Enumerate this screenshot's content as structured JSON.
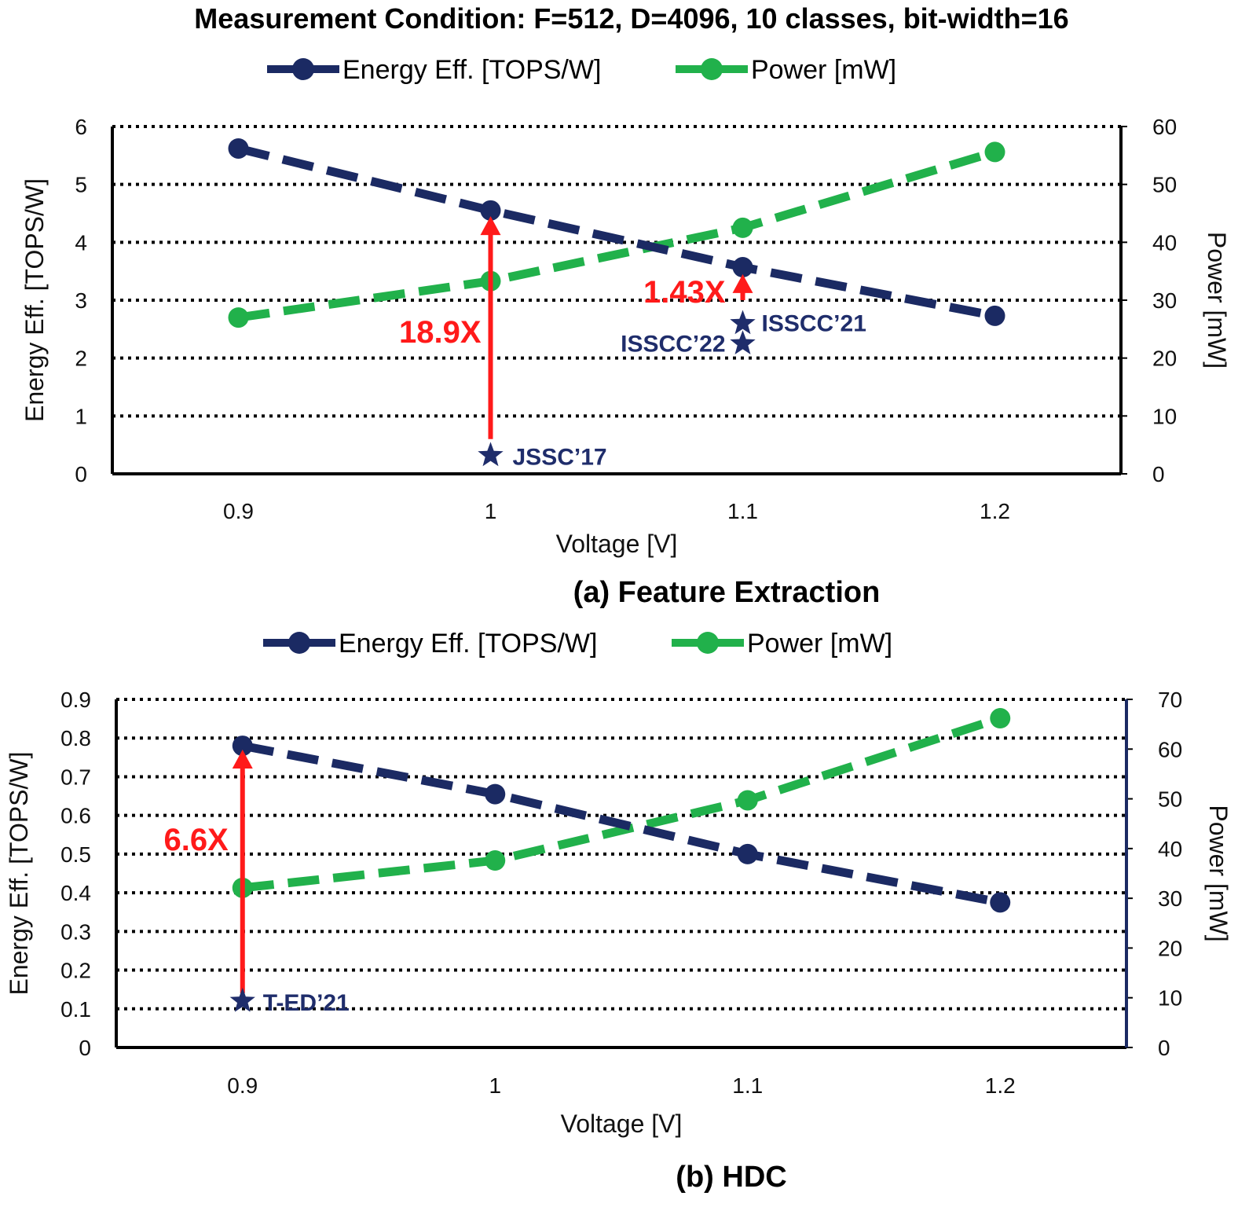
{
  "figure_title": "Measurement Condition: F=512, D=4096, 10 classes, bit-width=16",
  "colors": {
    "energy": "#1b2a63",
    "power": "#21b14b",
    "annotation": "#ff1a1a",
    "reference": "#1f2d6b"
  },
  "chart_data": [
    {
      "type": "line",
      "caption": "(a) Feature Extraction",
      "xlabel": "Voltage [V]",
      "ylabel": "Energy Eff. [TOPS/W]",
      "y2label": "Power [mW]",
      "categories": [
        "0.9",
        "1",
        "1.1",
        "1.2"
      ],
      "x": [
        0.9,
        1.0,
        1.1,
        1.2
      ],
      "xlim": [
        0.85,
        1.25
      ],
      "ylim": [
        0,
        6
      ],
      "yticks": [
        0,
        1,
        2,
        3,
        4,
        5,
        6
      ],
      "y2lim": [
        0,
        60
      ],
      "y2ticks": [
        0,
        10,
        20,
        30,
        40,
        50,
        60
      ],
      "grid": "horizontal dotted",
      "legend": "top-center",
      "series": [
        {
          "name": "Energy Eff. [TOPS/W]",
          "axis": "left",
          "values": [
            5.62,
            4.55,
            3.57,
            2.73
          ]
        },
        {
          "name": "Power [mW]",
          "axis": "right",
          "values": [
            27,
            33.3,
            42.5,
            55.6
          ]
        }
      ],
      "references": [
        {
          "label": "JSSC’17",
          "x": 1.0,
          "y": 0.32
        },
        {
          "label": "ISSCC’21",
          "x": 1.1,
          "y": 2.6
        },
        {
          "label": "ISSCC’22",
          "x": 1.1,
          "y": 2.25
        }
      ],
      "annotations": [
        {
          "text": "18.9X",
          "x": 1.0,
          "from": 0.6,
          "to": 4.45
        },
        {
          "text": "1.43X",
          "x": 1.1,
          "from": 3.0,
          "to": 3.45
        }
      ]
    },
    {
      "type": "line",
      "caption": "(b) HDC",
      "xlabel": "Voltage [V]",
      "ylabel": "Energy Eff. [TOPS/W]",
      "y2label": "Power [mW]",
      "categories": [
        "0.9",
        "1",
        "1.1",
        "1.2"
      ],
      "x": [
        0.9,
        1.0,
        1.1,
        1.2
      ],
      "xlim": [
        0.85,
        1.25
      ],
      "ylim": [
        0,
        0.9
      ],
      "yticks": [
        0,
        0.1,
        0.2,
        0.3,
        0.4,
        0.5,
        0.6,
        0.7,
        0.8,
        0.9
      ],
      "y2lim": [
        0,
        70
      ],
      "y2ticks": [
        0,
        10,
        20,
        30,
        40,
        50,
        60,
        70
      ],
      "grid": "horizontal dotted",
      "legend": "top-center",
      "series": [
        {
          "name": "Energy Eff. [TOPS/W]",
          "axis": "left",
          "values": [
            0.78,
            0.655,
            0.5,
            0.375
          ]
        },
        {
          "name": "Power [mW]",
          "axis": "right",
          "values": [
            32.1,
            37.6,
            49.7,
            66.2
          ]
        }
      ],
      "references": [
        {
          "label": "T-ED’21",
          "x": 0.9,
          "y": 0.12
        }
      ],
      "annotations": [
        {
          "text": "6.6X",
          "x": 0.9,
          "from": 0.14,
          "to": 0.77
        }
      ]
    }
  ]
}
